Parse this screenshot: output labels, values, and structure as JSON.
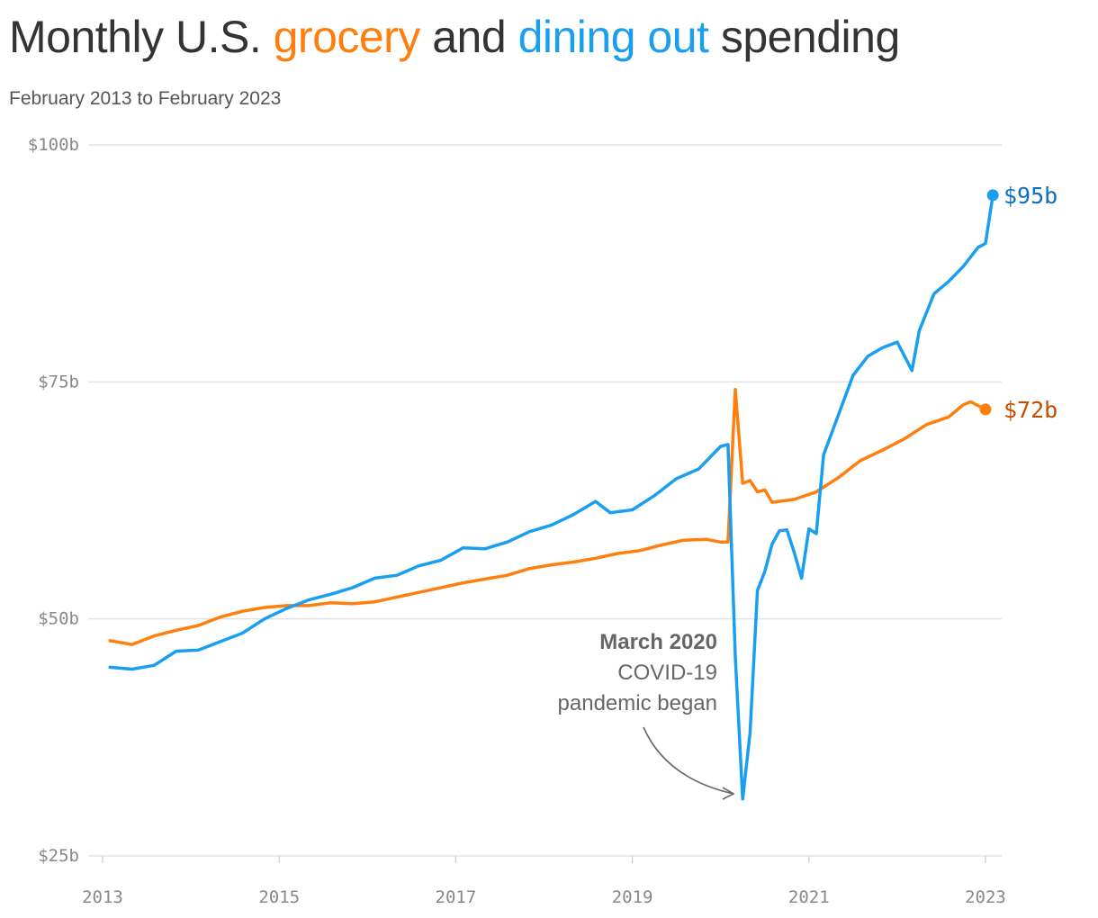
{
  "header": {
    "title_pre": "Monthly U.S. ",
    "title_grocery": "grocery",
    "title_mid": " and ",
    "title_dining": "dining out",
    "title_post": " spending",
    "subtitle": "February 2013 to February 2023"
  },
  "annotation": {
    "line1": "March 2020",
    "line2": "COVID-19",
    "line3": "pandemic began",
    "target_date": "2020-04"
  },
  "colors": {
    "grocery": "#ff7f0e",
    "dining": "#1a9ef0",
    "grocery_label": "#c24e00",
    "dining_label": "#0a6fc2",
    "grid": "#dddddd",
    "title": "#333333"
  },
  "chart_data": {
    "type": "line",
    "title": "Monthly U.S. grocery and dining out spending",
    "subtitle": "February 2013 to February 2023",
    "x_axis": {
      "type": "date",
      "range": [
        "2013-01",
        "2023-01"
      ],
      "ticks": [
        "2013",
        "2015",
        "2017",
        "2019",
        "2021",
        "2023"
      ]
    },
    "y_axis": {
      "range": [
        25,
        100
      ],
      "unit": "billions USD",
      "ticks": [
        100,
        75,
        50,
        25
      ],
      "tick_labels": [
        "$100b",
        "$75b",
        "$50b",
        "$25b"
      ]
    },
    "grid": "horizontal",
    "series": [
      {
        "name": "grocery",
        "end_label": "$72b",
        "points": [
          [
            "2013-02",
            47.7
          ],
          [
            "2013-05",
            47.3
          ],
          [
            "2013-08",
            48.2
          ],
          [
            "2013-11",
            48.8
          ],
          [
            "2014-02",
            49.3
          ],
          [
            "2014-05",
            50.2
          ],
          [
            "2014-08",
            50.8
          ],
          [
            "2014-11",
            51.2
          ],
          [
            "2015-02",
            51.4
          ],
          [
            "2015-05",
            51.4
          ],
          [
            "2015-08",
            51.7
          ],
          [
            "2015-11",
            51.6
          ],
          [
            "2016-02",
            51.8
          ],
          [
            "2016-05",
            52.3
          ],
          [
            "2016-08",
            52.8
          ],
          [
            "2016-11",
            53.3
          ],
          [
            "2017-02",
            53.8
          ],
          [
            "2017-05",
            54.2
          ],
          [
            "2017-08",
            54.6
          ],
          [
            "2017-11",
            55.3
          ],
          [
            "2018-02",
            55.7
          ],
          [
            "2018-05",
            56.0
          ],
          [
            "2018-08",
            56.4
          ],
          [
            "2018-11",
            56.9
          ],
          [
            "2019-02",
            57.2
          ],
          [
            "2019-05",
            57.8
          ],
          [
            "2019-08",
            58.3
          ],
          [
            "2019-11",
            58.4
          ],
          [
            "2020-01",
            58.1
          ],
          [
            "2020-02",
            58.1
          ],
          [
            "2020-03",
            74.2
          ],
          [
            "2020-04",
            64.3
          ],
          [
            "2020-05",
            64.6
          ],
          [
            "2020-06",
            63.4
          ],
          [
            "2020-07",
            63.6
          ],
          [
            "2020-08",
            62.3
          ],
          [
            "2020-11",
            62.6
          ],
          [
            "2021-02",
            63.4
          ],
          [
            "2021-05",
            64.9
          ],
          [
            "2021-08",
            66.7
          ],
          [
            "2021-11",
            67.8
          ],
          [
            "2022-02",
            69.0
          ],
          [
            "2022-05",
            70.5
          ],
          [
            "2022-08",
            71.3
          ],
          [
            "2022-10",
            72.6
          ],
          [
            "2022-11",
            72.9
          ],
          [
            "2023-01",
            72.1
          ]
        ]
      },
      {
        "name": "dining out",
        "end_label": "$95b",
        "points": [
          [
            "2013-02",
            44.9
          ],
          [
            "2013-05",
            44.7
          ],
          [
            "2013-08",
            45.1
          ],
          [
            "2013-11",
            46.6
          ],
          [
            "2014-02",
            46.7
          ],
          [
            "2014-05",
            47.6
          ],
          [
            "2014-08",
            48.5
          ],
          [
            "2014-11",
            50.0
          ],
          [
            "2015-02",
            51.1
          ],
          [
            "2015-05",
            52.0
          ],
          [
            "2015-08",
            52.6
          ],
          [
            "2015-11",
            53.3
          ],
          [
            "2016-02",
            54.3
          ],
          [
            "2016-05",
            54.6
          ],
          [
            "2016-08",
            55.6
          ],
          [
            "2016-11",
            56.2
          ],
          [
            "2017-02",
            57.5
          ],
          [
            "2017-05",
            57.4
          ],
          [
            "2017-08",
            58.1
          ],
          [
            "2017-11",
            59.2
          ],
          [
            "2018-02",
            59.9
          ],
          [
            "2018-05",
            61.0
          ],
          [
            "2018-08",
            62.4
          ],
          [
            "2018-10",
            61.2
          ],
          [
            "2019-01",
            61.5
          ],
          [
            "2019-04",
            63.0
          ],
          [
            "2019-07",
            64.8
          ],
          [
            "2019-10",
            65.8
          ],
          [
            "2020-01",
            68.2
          ],
          [
            "2020-02",
            68.4
          ],
          [
            "2020-03",
            46.0
          ],
          [
            "2020-04",
            31.0
          ],
          [
            "2020-05",
            38.0
          ],
          [
            "2020-06",
            53.0
          ],
          [
            "2020-07",
            55.0
          ],
          [
            "2020-08",
            57.9
          ],
          [
            "2020-09",
            59.3
          ],
          [
            "2020-10",
            59.4
          ],
          [
            "2020-11",
            57.0
          ],
          [
            "2020-12",
            54.3
          ],
          [
            "2021-01",
            59.5
          ],
          [
            "2021-02",
            59.0
          ],
          [
            "2021-03",
            67.3
          ],
          [
            "2021-05",
            71.5
          ],
          [
            "2021-07",
            75.7
          ],
          [
            "2021-09",
            77.7
          ],
          [
            "2021-11",
            78.6
          ],
          [
            "2022-01",
            79.2
          ],
          [
            "2022-03",
            76.2
          ],
          [
            "2022-04",
            80.4
          ],
          [
            "2022-06",
            84.3
          ],
          [
            "2022-08",
            85.6
          ],
          [
            "2022-10",
            87.2
          ],
          [
            "2022-12",
            89.2
          ],
          [
            "2023-01",
            89.6
          ],
          [
            "2023-02",
            94.7
          ]
        ]
      }
    ]
  }
}
